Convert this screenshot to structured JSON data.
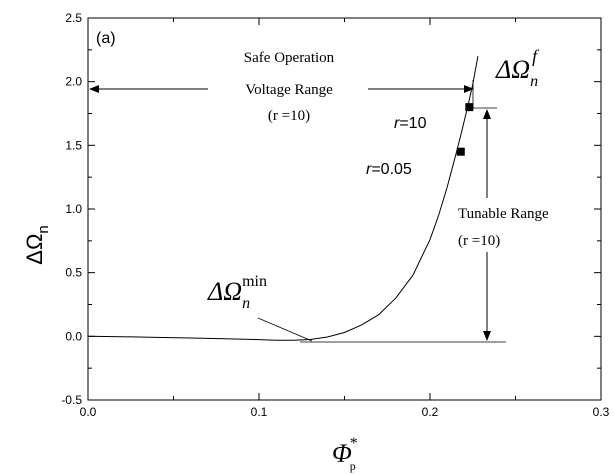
{
  "chart_data": {
    "type": "line",
    "panel_label": "(a)",
    "xlim": [
      0.0,
      0.3
    ],
    "ylim": [
      -0.5,
      2.5
    ],
    "x_ticks": [
      "0.0",
      "0.1",
      "0.2",
      "0.3"
    ],
    "y_ticks": [
      "-0.5",
      "0.0",
      "0.5",
      "1.0",
      "1.5",
      "2.0",
      "2.5"
    ],
    "xlabel": {
      "symbol": "Φ",
      "sub": "p",
      "sup": "*"
    },
    "ylabel": {
      "symbol": "ΔΩ",
      "sub": "n"
    },
    "curve": {
      "x": [
        0.0,
        0.02,
        0.04,
        0.06,
        0.08,
        0.1,
        0.11,
        0.12,
        0.13,
        0.14,
        0.15,
        0.16,
        0.17,
        0.18,
        0.19,
        0.2,
        0.205,
        0.21,
        0.215,
        0.218,
        0.222,
        0.225,
        0.228
      ],
      "y": [
        0.0,
        -0.003,
        -0.008,
        -0.013,
        -0.019,
        -0.026,
        -0.03,
        -0.031,
        -0.025,
        -0.005,
        0.03,
        0.09,
        0.17,
        0.3,
        0.48,
        0.76,
        0.95,
        1.17,
        1.42,
        1.58,
        1.8,
        1.98,
        2.2
      ]
    },
    "markers": [
      {
        "label": "r=0.05",
        "x": 0.218,
        "y": 1.45
      },
      {
        "label": "r=10",
        "x": 0.223,
        "y": 1.8
      }
    ],
    "annotations": {
      "safe_line1": "Safe Operation",
      "safe_line2": "Voltage Range",
      "safe_line3": "(r =10)",
      "tunable_line1": "Tunable Range",
      "tunable_line2": "(r =10)",
      "omega_min": {
        "symbol": "ΔΩ",
        "sub": "n",
        "sup": "min"
      },
      "omega_f": {
        "symbol": "ΔΩ",
        "sub": "n",
        "sup": "f"
      }
    }
  }
}
